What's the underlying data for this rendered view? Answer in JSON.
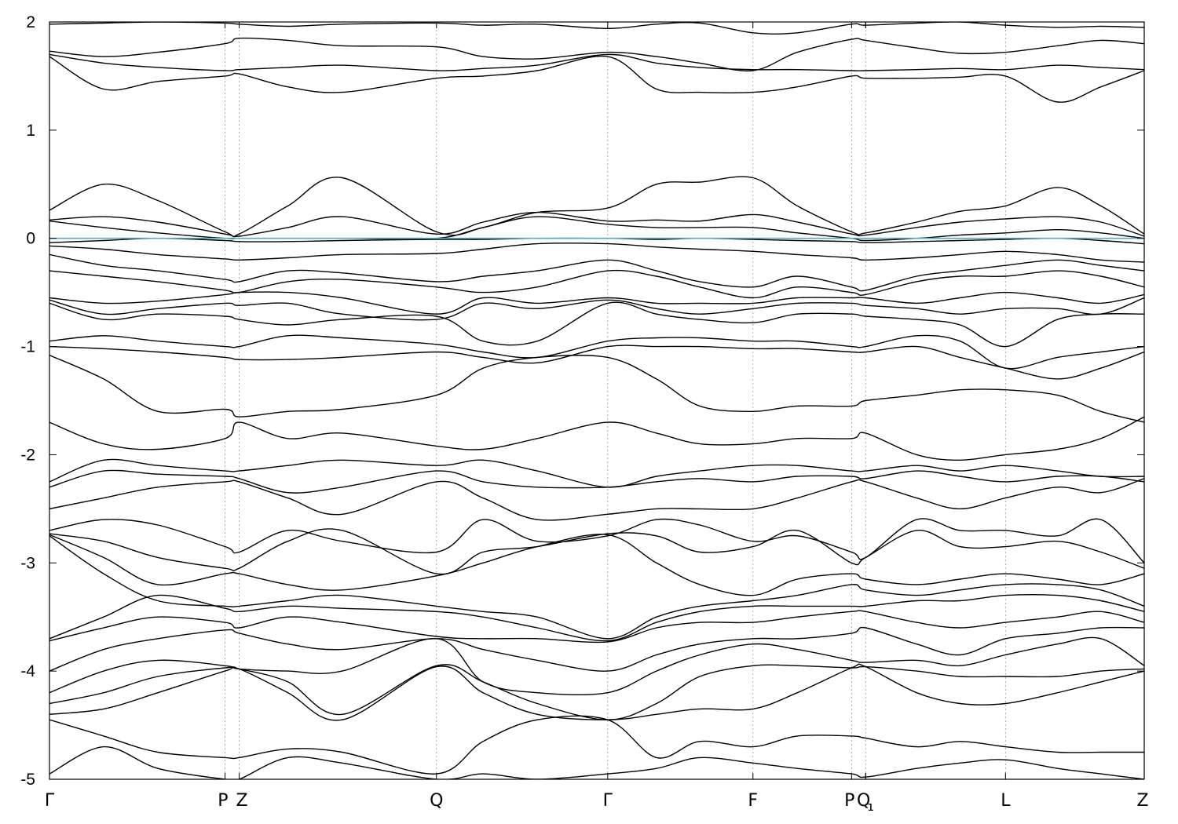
{
  "chart_data": {
    "type": "line",
    "title": "",
    "xlabel": "",
    "ylabel": "",
    "ylim": [
      -5,
      2
    ],
    "xlim": [
      0,
      10.1
    ],
    "yticks": [
      2,
      1,
      0,
      -1,
      -2,
      -3,
      -4,
      -5
    ],
    "kpoints": [
      {
        "label": "Γ",
        "x": 0
      },
      {
        "label": "P",
        "x": 1.62
      },
      {
        "label": "Z",
        "x": 1.75
      },
      {
        "label": "Q",
        "x": 3.57
      },
      {
        "label": "Γ",
        "x": 5.15
      },
      {
        "label": "F",
        "x": 6.49
      },
      {
        "label": "P",
        "x": 7.4
      },
      {
        "label": "Q",
        "x": 7.53
      },
      {
        "label": "₁",
        "x": 7.53
      },
      {
        "label": "L",
        "x": 8.82
      },
      {
        "label": "Z",
        "x": 10.1
      }
    ],
    "fermi_level": 0,
    "fermi_color": "#55aacc",
    "line_color": "#000000",
    "grid": "vertical dotted at high-symmetry points",
    "bands_x": [
      0,
      0.5,
      1.0,
      1.62,
      1.75,
      2.2,
      2.7,
      3.57,
      4.0,
      4.5,
      5.15,
      5.6,
      6.0,
      6.49,
      6.9,
      7.4,
      7.53,
      8.0,
      8.4,
      8.82,
      9.3,
      9.7,
      10.1
    ],
    "bands": [
      [
        1.98,
        1.99,
        2.0,
        1.99,
        1.98,
        1.96,
        1.98,
        1.99,
        1.97,
        1.98,
        1.94,
        1.98,
        1.99,
        1.9,
        1.9,
        1.98,
        1.97,
        1.99,
        2.0,
        1.97,
        1.95,
        1.96,
        1.95
      ],
      [
        1.73,
        1.68,
        1.72,
        1.8,
        1.85,
        1.83,
        1.78,
        1.77,
        1.68,
        1.66,
        1.72,
        1.68,
        1.62,
        1.55,
        1.72,
        1.84,
        1.83,
        1.76,
        1.71,
        1.72,
        1.78,
        1.83,
        1.8
      ],
      [
        1.7,
        1.62,
        1.58,
        1.55,
        1.56,
        1.58,
        1.6,
        1.55,
        1.57,
        1.6,
        1.7,
        1.62,
        1.58,
        1.56,
        1.56,
        1.55,
        1.55,
        1.56,
        1.57,
        1.56,
        1.6,
        1.58,
        1.56
      ],
      [
        1.68,
        1.38,
        1.45,
        1.5,
        1.52,
        1.4,
        1.35,
        1.48,
        1.5,
        1.55,
        1.68,
        1.38,
        1.35,
        1.35,
        1.4,
        1.5,
        1.48,
        1.48,
        1.49,
        1.5,
        1.26,
        1.4,
        1.55
      ],
      [
        0.26,
        0.5,
        0.35,
        0.06,
        0.04,
        0.3,
        0.56,
        0.06,
        0.1,
        0.24,
        0.28,
        0.5,
        0.52,
        0.56,
        0.3,
        0.06,
        0.05,
        0.15,
        0.25,
        0.3,
        0.47,
        0.3,
        0.04
      ],
      [
        0.17,
        0.2,
        0.15,
        0.04,
        0.02,
        0.1,
        0.2,
        0.04,
        0.15,
        0.24,
        0.16,
        0.17,
        0.16,
        0.22,
        0.15,
        0.04,
        0.03,
        0.1,
        0.15,
        0.18,
        0.2,
        0.15,
        0.02
      ],
      [
        0.16,
        0.1,
        0.05,
        0.0,
        0.0,
        0.0,
        0.0,
        0.0,
        0.1,
        0.2,
        0.13,
        0.1,
        0.1,
        0.1,
        0.05,
        0.0,
        -0.02,
        0.0,
        0.03,
        0.05,
        0.08,
        0.05,
        0.0
      ],
      [
        -0.04,
        -0.02,
        0.0,
        -0.02,
        -0.03,
        -0.03,
        -0.02,
        -0.01,
        -0.01,
        0.0,
        0.0,
        -0.01,
        0.0,
        -0.01,
        -0.02,
        -0.03,
        -0.04,
        -0.03,
        -0.02,
        -0.01,
        0.0,
        -0.02,
        -0.05
      ],
      [
        -0.07,
        -0.1,
        -0.15,
        -0.19,
        -0.2,
        -0.18,
        -0.15,
        -0.14,
        -0.1,
        -0.05,
        -0.05,
        -0.08,
        -0.1,
        -0.12,
        -0.15,
        -0.18,
        -0.2,
        -0.18,
        -0.15,
        -0.12,
        -0.15,
        -0.2,
        -0.22
      ],
      [
        -0.15,
        -0.25,
        -0.3,
        -0.38,
        -0.4,
        -0.3,
        -0.32,
        -0.4,
        -0.35,
        -0.3,
        -0.2,
        -0.3,
        -0.4,
        -0.45,
        -0.35,
        -0.45,
        -0.48,
        -0.35,
        -0.3,
        -0.25,
        -0.2,
        -0.25,
        -0.3
      ],
      [
        -0.3,
        -0.35,
        -0.4,
        -0.48,
        -0.5,
        -0.4,
        -0.38,
        -0.45,
        -0.5,
        -0.45,
        -0.3,
        -0.35,
        -0.45,
        -0.55,
        -0.45,
        -0.5,
        -0.52,
        -0.4,
        -0.35,
        -0.35,
        -0.3,
        -0.35,
        -0.45
      ],
      [
        -0.55,
        -0.6,
        -0.58,
        -0.52,
        -0.5,
        -0.5,
        -0.55,
        -0.7,
        -0.55,
        -0.6,
        -0.55,
        -0.6,
        -0.6,
        -0.6,
        -0.55,
        -0.55,
        -0.55,
        -0.6,
        -0.55,
        -0.5,
        -0.55,
        -0.6,
        -0.52
      ],
      [
        -0.57,
        -0.7,
        -0.65,
        -0.6,
        -0.62,
        -0.6,
        -0.7,
        -0.75,
        -0.6,
        -0.65,
        -0.57,
        -0.65,
        -0.7,
        -0.65,
        -0.6,
        -0.6,
        -0.62,
        -0.65,
        -0.7,
        -0.65,
        -0.65,
        -0.7,
        -0.55
      ],
      [
        -0.6,
        -0.75,
        -0.7,
        -0.72,
        -0.75,
        -0.8,
        -0.75,
        -0.72,
        -0.95,
        -0.95,
        -0.6,
        -0.7,
        -0.75,
        -0.78,
        -0.7,
        -0.7,
        -0.72,
        -0.75,
        -0.8,
        -1.0,
        -0.75,
        -0.7,
        -0.7
      ],
      [
        -0.95,
        -0.9,
        -0.95,
        -1.0,
        -1.0,
        -0.9,
        -0.92,
        -0.98,
        -1.05,
        -1.1,
        -0.95,
        -0.92,
        -0.92,
        -0.95,
        -0.95,
        -1.0,
        -1.0,
        -0.9,
        -0.95,
        -1.2,
        -1.1,
        -1.05,
        -1.0
      ],
      [
        -1.0,
        -1.02,
        -1.05,
        -1.1,
        -1.12,
        -1.12,
        -1.1,
        -1.05,
        -1.1,
        -1.15,
        -1.0,
        -1.0,
        -1.0,
        -1.02,
        -1.02,
        -1.05,
        -1.05,
        -1.0,
        -1.1,
        -1.2,
        -1.3,
        -1.2,
        -1.05
      ],
      [
        -1.08,
        -1.3,
        -1.6,
        -1.58,
        -1.65,
        -1.6,
        -1.58,
        -1.45,
        -1.2,
        -1.1,
        -1.1,
        -1.3,
        -1.55,
        -1.6,
        -1.55,
        -1.55,
        -1.5,
        -1.45,
        -1.4,
        -1.4,
        -1.45,
        -1.6,
        -1.7
      ],
      [
        -1.7,
        -1.9,
        -1.95,
        -1.85,
        -1.7,
        -1.85,
        -1.8,
        -1.92,
        -1.95,
        -1.85,
        -1.7,
        -1.8,
        -1.9,
        -1.9,
        -1.85,
        -1.85,
        -1.8,
        -2.0,
        -2.05,
        -2.0,
        -1.95,
        -1.85,
        -1.65
      ],
      [
        -2.25,
        -2.05,
        -2.1,
        -2.15,
        -2.15,
        -2.1,
        -2.05,
        -2.1,
        -2.05,
        -2.15,
        -2.3,
        -2.2,
        -2.15,
        -2.1,
        -2.1,
        -2.15,
        -2.15,
        -2.1,
        -2.15,
        -2.1,
        -2.15,
        -2.2,
        -2.2
      ],
      [
        -2.3,
        -2.15,
        -2.18,
        -2.2,
        -2.22,
        -2.35,
        -2.3,
        -2.15,
        -2.25,
        -2.3,
        -2.3,
        -2.25,
        -2.22,
        -2.25,
        -2.2,
        -2.2,
        -2.22,
        -2.15,
        -2.2,
        -2.25,
        -2.2,
        -2.2,
        -2.25
      ],
      [
        -2.5,
        -2.4,
        -2.3,
        -2.25,
        -2.25,
        -2.4,
        -2.55,
        -2.25,
        -2.4,
        -2.6,
        -2.55,
        -2.5,
        -2.5,
        -2.5,
        -2.4,
        -2.25,
        -2.25,
        -2.4,
        -2.5,
        -2.4,
        -2.3,
        -2.35,
        -2.22
      ],
      [
        -2.7,
        -2.6,
        -2.65,
        -2.85,
        -2.9,
        -2.7,
        -2.8,
        -2.9,
        -2.6,
        -2.8,
        -2.75,
        -2.6,
        -2.65,
        -2.8,
        -2.75,
        -2.9,
        -2.95,
        -2.6,
        -2.7,
        -2.7,
        -2.75,
        -2.6,
        -3.0
      ],
      [
        -2.73,
        -2.8,
        -2.95,
        -3.05,
        -3.05,
        -2.8,
        -2.7,
        -3.1,
        -2.9,
        -2.85,
        -2.73,
        -2.75,
        -2.9,
        -2.85,
        -2.7,
        -3.0,
        -2.95,
        -2.7,
        -2.85,
        -2.85,
        -2.8,
        -2.9,
        -3.05
      ],
      [
        -2.74,
        -2.95,
        -3.2,
        -3.1,
        -3.1,
        -3.2,
        -3.25,
        -3.12,
        -3.0,
        -2.85,
        -2.74,
        -3.0,
        -3.2,
        -3.3,
        -3.15,
        -3.1,
        -3.15,
        -3.2,
        -3.15,
        -3.1,
        -3.15,
        -3.2,
        -3.1
      ],
      [
        -2.75,
        -3.1,
        -3.35,
        -3.4,
        -3.4,
        -3.35,
        -3.3,
        -3.4,
        -3.45,
        -3.5,
        -3.7,
        -3.5,
        -3.4,
        -3.35,
        -3.3,
        -3.2,
        -3.25,
        -3.3,
        -3.25,
        -3.2,
        -3.2,
        -3.25,
        -3.4
      ],
      [
        -3.7,
        -3.5,
        -3.3,
        -3.42,
        -3.45,
        -3.4,
        -3.42,
        -3.45,
        -3.5,
        -3.6,
        -3.72,
        -3.55,
        -3.45,
        -3.4,
        -3.4,
        -3.4,
        -3.4,
        -3.35,
        -3.35,
        -3.3,
        -3.3,
        -3.35,
        -3.45
      ],
      [
        -3.72,
        -3.6,
        -3.5,
        -3.55,
        -3.6,
        -3.5,
        -3.55,
        -3.68,
        -3.7,
        -3.7,
        -3.73,
        -3.6,
        -3.55,
        -3.55,
        -3.5,
        -3.45,
        -3.45,
        -3.55,
        -3.6,
        -3.55,
        -3.5,
        -3.45,
        -3.55
      ],
      [
        -4.0,
        -3.8,
        -3.7,
        -3.62,
        -3.65,
        -3.75,
        -3.8,
        -3.7,
        -3.8,
        -3.9,
        -4.0,
        -3.85,
        -3.75,
        -3.7,
        -3.7,
        -3.65,
        -3.6,
        -3.75,
        -3.85,
        -3.7,
        -3.65,
        -3.6,
        -3.6
      ],
      [
        -4.2,
        -4.0,
        -3.9,
        -3.95,
        -3.98,
        -4.0,
        -4.0,
        -3.7,
        -4.1,
        -4.2,
        -4.2,
        -4.0,
        -3.85,
        -3.75,
        -3.8,
        -3.9,
        -3.92,
        -3.9,
        -3.95,
        -3.85,
        -3.75,
        -3.7,
        -3.95
      ],
      [
        -4.3,
        -4.2,
        -4.05,
        -3.97,
        -3.98,
        -4.1,
        -4.4,
        -3.95,
        -4.1,
        -4.3,
        -4.45,
        -4.3,
        -4.05,
        -3.95,
        -3.95,
        -3.97,
        -3.96,
        -4.0,
        -4.05,
        -4.05,
        -4.05,
        -4.0,
        -3.98
      ],
      [
        -4.4,
        -4.35,
        -4.2,
        -4.0,
        -3.98,
        -4.2,
        -4.45,
        -3.96,
        -4.2,
        -4.4,
        -4.45,
        -4.4,
        -4.35,
        -4.35,
        -4.2,
        -3.97,
        -3.96,
        -4.2,
        -4.3,
        -4.3,
        -4.2,
        -4.1,
        -4.0
      ],
      [
        -4.45,
        -4.6,
        -4.75,
        -4.8,
        -4.8,
        -4.72,
        -4.75,
        -4.95,
        -4.65,
        -4.45,
        -4.45,
        -4.8,
        -4.65,
        -4.7,
        -4.6,
        -4.6,
        -4.62,
        -4.7,
        -4.65,
        -4.7,
        -4.75,
        -4.75,
        -4.75
      ],
      [
        -4.95,
        -4.7,
        -4.9,
        -5.0,
        -5.0,
        -4.8,
        -4.85,
        -5.0,
        -4.95,
        -5.0,
        -4.95,
        -4.9,
        -4.8,
        -4.85,
        -4.9,
        -4.95,
        -4.98,
        -4.9,
        -4.85,
        -4.82,
        -4.9,
        -4.95,
        -5.0
      ]
    ]
  }
}
